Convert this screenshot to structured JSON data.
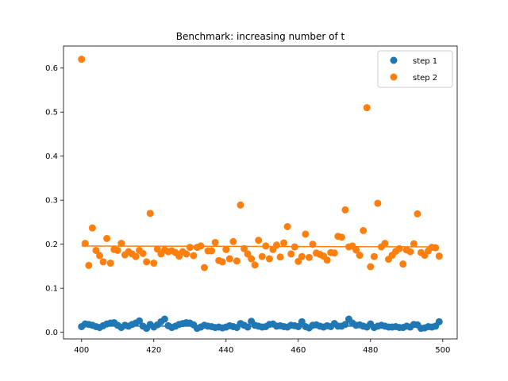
{
  "chart_data": {
    "type": "scatter",
    "title": "Benchmark: increasing number of t",
    "xlabel": "",
    "ylabel": "",
    "xlim": [
      395,
      504
    ],
    "ylim": [
      -0.015,
      0.65
    ],
    "xticks": [
      400,
      420,
      440,
      460,
      480,
      500
    ],
    "yticks": [
      0.0,
      0.1,
      0.2,
      0.3,
      0.4,
      0.5,
      0.6
    ],
    "ytick_labels": [
      "0.0",
      "0.1",
      "0.2",
      "0.3",
      "0.4",
      "0.5",
      "0.6"
    ],
    "grid": false,
    "legend_position": "top-right",
    "x": [
      400,
      401,
      402,
      403,
      404,
      405,
      406,
      407,
      408,
      409,
      410,
      411,
      412,
      413,
      414,
      415,
      416,
      417,
      418,
      419,
      420,
      421,
      422,
      423,
      424,
      425,
      426,
      427,
      428,
      429,
      430,
      431,
      432,
      433,
      434,
      435,
      436,
      437,
      438,
      439,
      440,
      441,
      442,
      443,
      444,
      445,
      446,
      447,
      448,
      449,
      450,
      451,
      452,
      453,
      454,
      455,
      456,
      457,
      458,
      459,
      460,
      461,
      462,
      463,
      464,
      465,
      466,
      467,
      468,
      469,
      470,
      471,
      472,
      473,
      474,
      475,
      476,
      477,
      478,
      479,
      480,
      481,
      482,
      483,
      484,
      485,
      486,
      487,
      488,
      489,
      490,
      491,
      492,
      493,
      494,
      495,
      496,
      497,
      498,
      499
    ],
    "series": [
      {
        "name": "step 1",
        "color": "#1f77b4",
        "values": [
          0.013,
          0.019,
          0.018,
          0.016,
          0.013,
          0.011,
          0.015,
          0.019,
          0.021,
          0.022,
          0.016,
          0.011,
          0.016,
          0.014,
          0.018,
          0.021,
          0.026,
          0.014,
          0.009,
          0.018,
          0.012,
          0.017,
          0.024,
          0.03,
          0.015,
          0.011,
          0.014,
          0.018,
          0.02,
          0.022,
          0.021,
          0.017,
          0.009,
          0.012,
          0.016,
          0.014,
          0.013,
          0.011,
          0.012,
          0.01,
          0.012,
          0.015,
          0.013,
          0.011,
          0.02,
          0.016,
          0.012,
          0.025,
          0.016,
          0.014,
          0.012,
          0.013,
          0.018,
          0.019,
          0.014,
          0.015,
          0.013,
          0.012,
          0.016,
          0.015,
          0.013,
          0.024,
          0.013,
          0.01,
          0.016,
          0.017,
          0.014,
          0.012,
          0.015,
          0.013,
          0.02,
          0.014,
          0.014,
          0.018,
          0.03,
          0.021,
          0.016,
          0.017,
          0.014,
          0.012,
          0.019,
          0.011,
          0.014,
          0.016,
          0.014,
          0.012,
          0.012,
          0.013,
          0.011,
          0.011,
          0.014,
          0.012,
          0.018,
          0.017,
          0.009,
          0.01,
          0.013,
          0.012,
          0.014,
          0.024
        ],
        "trend": [
          0.014,
          0.014
        ]
      },
      {
        "name": "step 2",
        "color": "#ff7f0e",
        "values": [
          0.62,
          0.202,
          0.152,
          0.237,
          0.186,
          0.174,
          0.16,
          0.213,
          0.157,
          0.188,
          0.186,
          0.202,
          0.176,
          0.183,
          0.178,
          0.172,
          0.186,
          0.179,
          0.16,
          0.27,
          0.157,
          0.189,
          0.178,
          0.187,
          0.183,
          0.185,
          0.181,
          0.173,
          0.183,
          0.178,
          0.193,
          0.174,
          0.193,
          0.196,
          0.147,
          0.185,
          0.185,
          0.204,
          0.163,
          0.16,
          0.188,
          0.167,
          0.206,
          0.162,
          0.289,
          0.19,
          0.178,
          0.167,
          0.153,
          0.209,
          0.172,
          0.196,
          0.167,
          0.188,
          0.198,
          0.171,
          0.203,
          0.24,
          0.178,
          0.194,
          0.161,
          0.172,
          0.223,
          0.17,
          0.2,
          0.18,
          0.177,
          0.173,
          0.164,
          0.181,
          0.18,
          0.218,
          0.216,
          0.278,
          0.194,
          0.196,
          0.187,
          0.175,
          0.231,
          0.51,
          0.149,
          0.172,
          0.293,
          0.194,
          0.202,
          0.166,
          0.175,
          0.184,
          0.19,
          0.155,
          0.187,
          0.183,
          0.201,
          0.269,
          0.181,
          0.175,
          0.185,
          0.193,
          0.192,
          0.173
        ],
        "trend": [
          0.196,
          0.194
        ]
      }
    ]
  }
}
